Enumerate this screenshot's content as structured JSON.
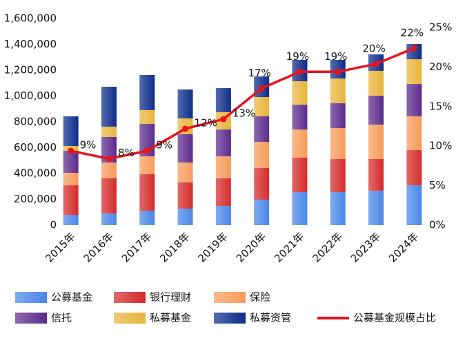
{
  "chart_data": {
    "type": "bar",
    "categories": [
      "2015年",
      "2016年",
      "2017年",
      "2018年",
      "2019年",
      "2020年",
      "2021年",
      "2022年",
      "2023年",
      "2024年"
    ],
    "series": [
      {
        "name": "公募基金",
        "color": "#4a86e8",
        "values": [
          80000,
          91000,
          112000,
          128000,
          149000,
          197000,
          256000,
          256000,
          267000,
          309000
        ]
      },
      {
        "name": "银行理财",
        "color": "#d42a2a",
        "values": [
          229000,
          272000,
          283000,
          203000,
          214000,
          246000,
          267000,
          256000,
          245000,
          272000
        ]
      },
      {
        "name": "保险",
        "color": "#f79a5a",
        "values": [
          96000,
          122000,
          138000,
          154000,
          170000,
          202000,
          218000,
          240000,
          267000,
          262000
        ]
      },
      {
        "name": "信托",
        "color": "#5b2a8c",
        "values": [
          171000,
          198000,
          251000,
          219000,
          208000,
          198000,
          192000,
          192000,
          224000,
          250000
        ]
      },
      {
        "name": "私募基金",
        "color": "#e8b43a",
        "values": [
          37000,
          80000,
          107000,
          123000,
          134000,
          149000,
          182000,
          192000,
          192000,
          192000
        ]
      },
      {
        "name": "私募资管",
        "color": "#0d2c8a",
        "values": [
          230000,
          309000,
          272000,
          224000,
          186000,
          160000,
          165000,
          144000,
          128000,
          118000
        ]
      },
      {
        "name": "公募基金规模占比",
        "type": "line",
        "axis": "y2",
        "color": "#e8141c",
        "values": [
          9.4,
          8.4,
          9.4,
          12.2,
          13.4,
          17.3,
          19.4,
          19.4,
          20.4,
          22.4
        ],
        "value_labels": [
          "9%",
          "8%",
          "9%",
          "12%",
          "13%",
          "17%",
          "19%",
          "19%",
          "20%",
          "22%"
        ]
      }
    ],
    "ylim": [
      0,
      1600000
    ],
    "yticks": [
      0,
      {
        "value": 200000,
        "label": "200,000"
      },
      {
        "value": 400000,
        "label": "400,000"
      },
      {
        "value": 600000,
        "label": "600,000"
      },
      {
        "value": 800000,
        "label": "800,000"
      },
      {
        "value": 1000000,
        "label": "1,000,000"
      },
      {
        "value": 1200000,
        "label": "1,200,000"
      },
      {
        "value": 1400000,
        "label": "1,400,000"
      },
      {
        "value": 1600000,
        "label": "1,600,000"
      }
    ],
    "y2lim": [
      0,
      25
    ],
    "y2ticks": [
      {
        "value": 0,
        "label": "0%"
      },
      {
        "value": 5,
        "label": "5%"
      },
      {
        "value": 10,
        "label": "10%"
      },
      {
        "value": 15,
        "label": "15%"
      },
      {
        "value": 20,
        "label": "20%"
      },
      {
        "value": 25,
        "label": "25%"
      }
    ],
    "legend": "bottom"
  }
}
